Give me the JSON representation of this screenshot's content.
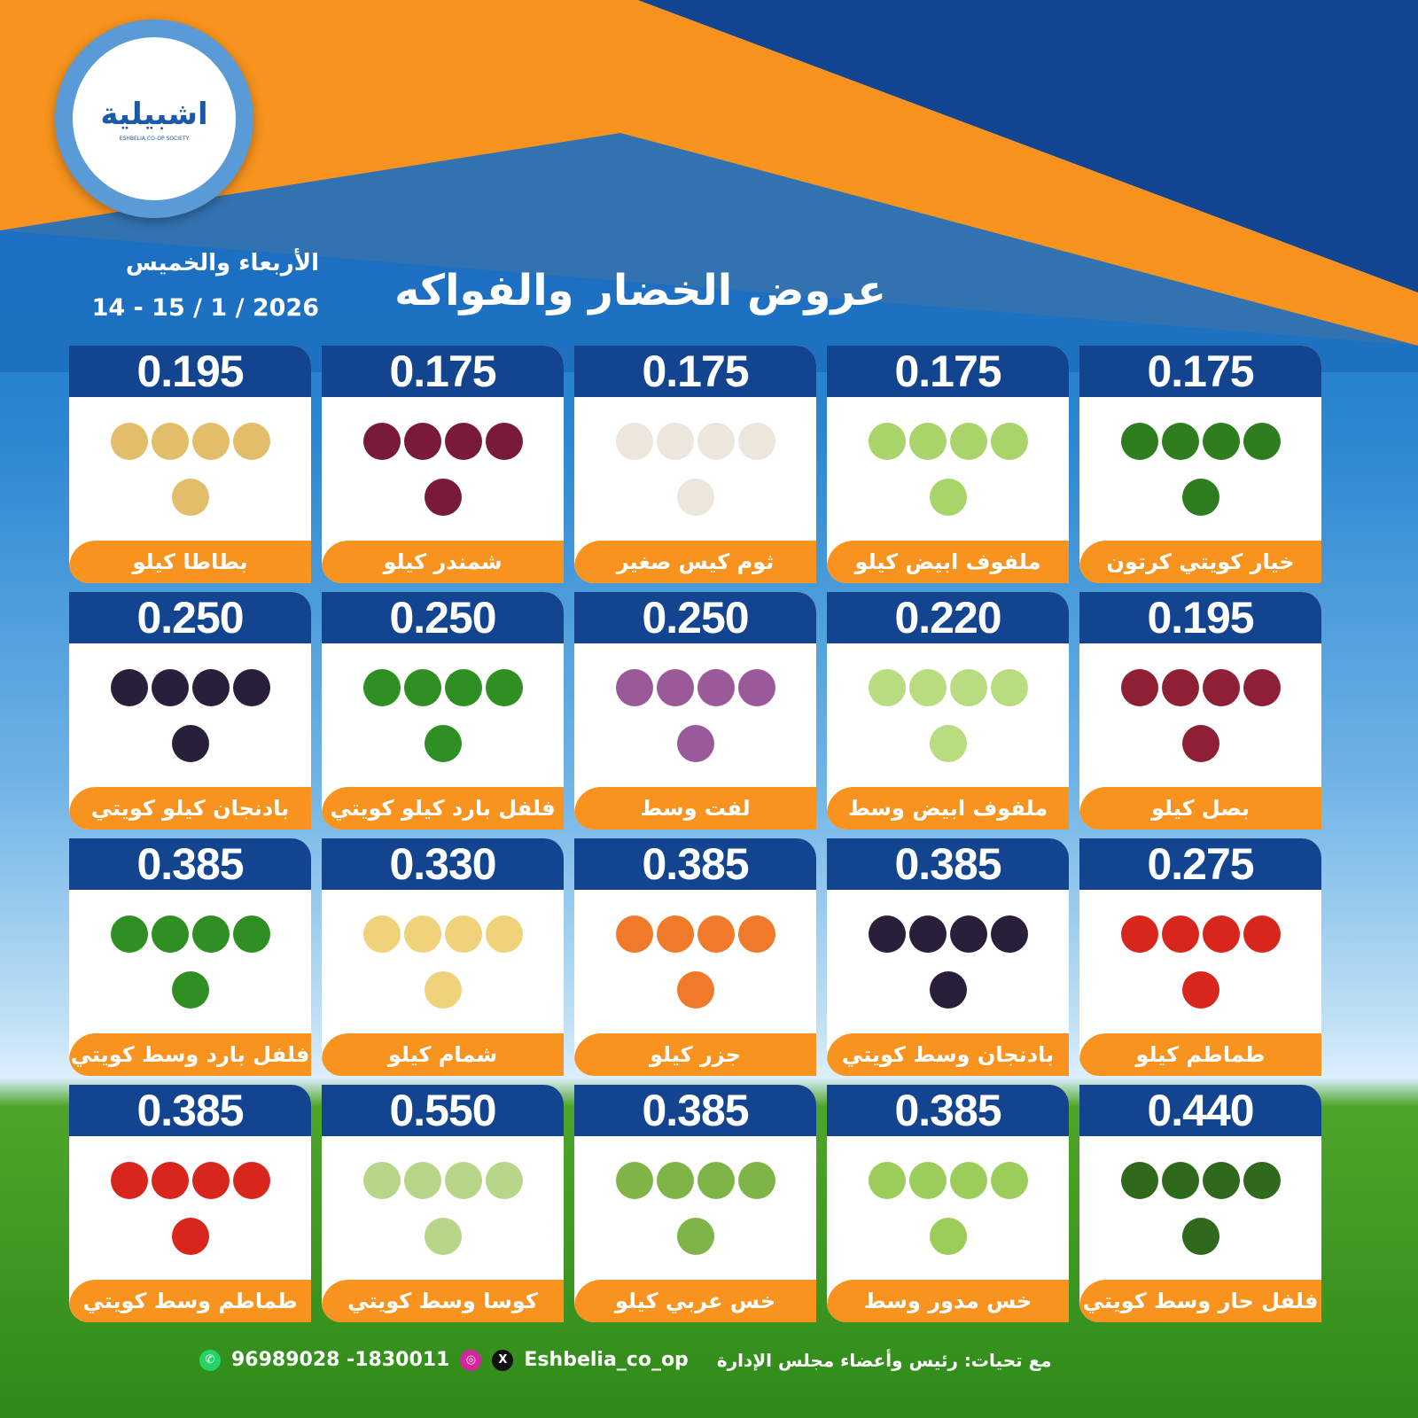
{
  "brand": {
    "name_ar": "اشبيلية",
    "name_en": "ESHBELIA CO-OP SOCIETY"
  },
  "header": {
    "title": "عروض الخضار والفواكه",
    "days": "الأربعاء والخميس",
    "date": "14 - 15 / 1 / 2026"
  },
  "colors": {
    "price_bg": "#13448f",
    "label_bg": "#f7931e",
    "orange": "#f7931e",
    "blue": "#1a6fc0"
  },
  "items": [
    {
      "price": "0.175",
      "name": "خيار كويتي كرتون",
      "color": "#2e7d1e"
    },
    {
      "price": "0.175",
      "name": "ملفوف ابيض كيلو",
      "color": "#a8d46a"
    },
    {
      "price": "0.175",
      "name": "ثوم كيس صغير",
      "color": "#ece6dc"
    },
    {
      "price": "0.175",
      "name": "شمندر كيلو",
      "color": "#7a1a3a"
    },
    {
      "price": "0.195",
      "name": "بطاطا كيلو",
      "color": "#e2bd6a"
    },
    {
      "price": "0.195",
      "name": "بصل كيلو",
      "color": "#8e1f35"
    },
    {
      "price": "0.220",
      "name": "ملفوف ابيض وسط",
      "color": "#b9dc80"
    },
    {
      "price": "0.250",
      "name": "لفت وسط",
      "color": "#9a5a9a"
    },
    {
      "price": "0.250",
      "name": "فلفل بارد كيلو كويتي",
      "color": "#2f8f22"
    },
    {
      "price": "0.250",
      "name": "بادنجان كيلو كويتي",
      "color": "#2a1f3a"
    },
    {
      "price": "0.275",
      "name": "طماطم كيلو",
      "color": "#d8261c"
    },
    {
      "price": "0.385",
      "name": "بادنجان وسط كويتي",
      "color": "#2a1f3a"
    },
    {
      "price": "0.385",
      "name": "جزر كيلو",
      "color": "#f07a2a"
    },
    {
      "price": "0.330",
      "name": "شمام كيلو",
      "color": "#f0d27a"
    },
    {
      "price": "0.385",
      "name": "فلفل بارد وسط كويتي",
      "color": "#2f8f22"
    },
    {
      "price": "0.440",
      "name": "فلفل حار وسط كويتي",
      "color": "#2f6a1c"
    },
    {
      "price": "0.385",
      "name": "خس مدور وسط",
      "color": "#9ccc5a"
    },
    {
      "price": "0.385",
      "name": "خس عربي كيلو",
      "color": "#7fb548"
    },
    {
      "price": "0.550",
      "name": "كوسا وسط كويتي",
      "color": "#b8d68a"
    },
    {
      "price": "0.385",
      "name": "طماطم وسط كويتي",
      "color": "#d8261c"
    }
  ],
  "footer": {
    "greeting": "مع تحيات: رئيس وأعضاء مجلس الإدارة",
    "handle": "Eshbelia_co_op",
    "phones": "96989028 -1830011"
  }
}
